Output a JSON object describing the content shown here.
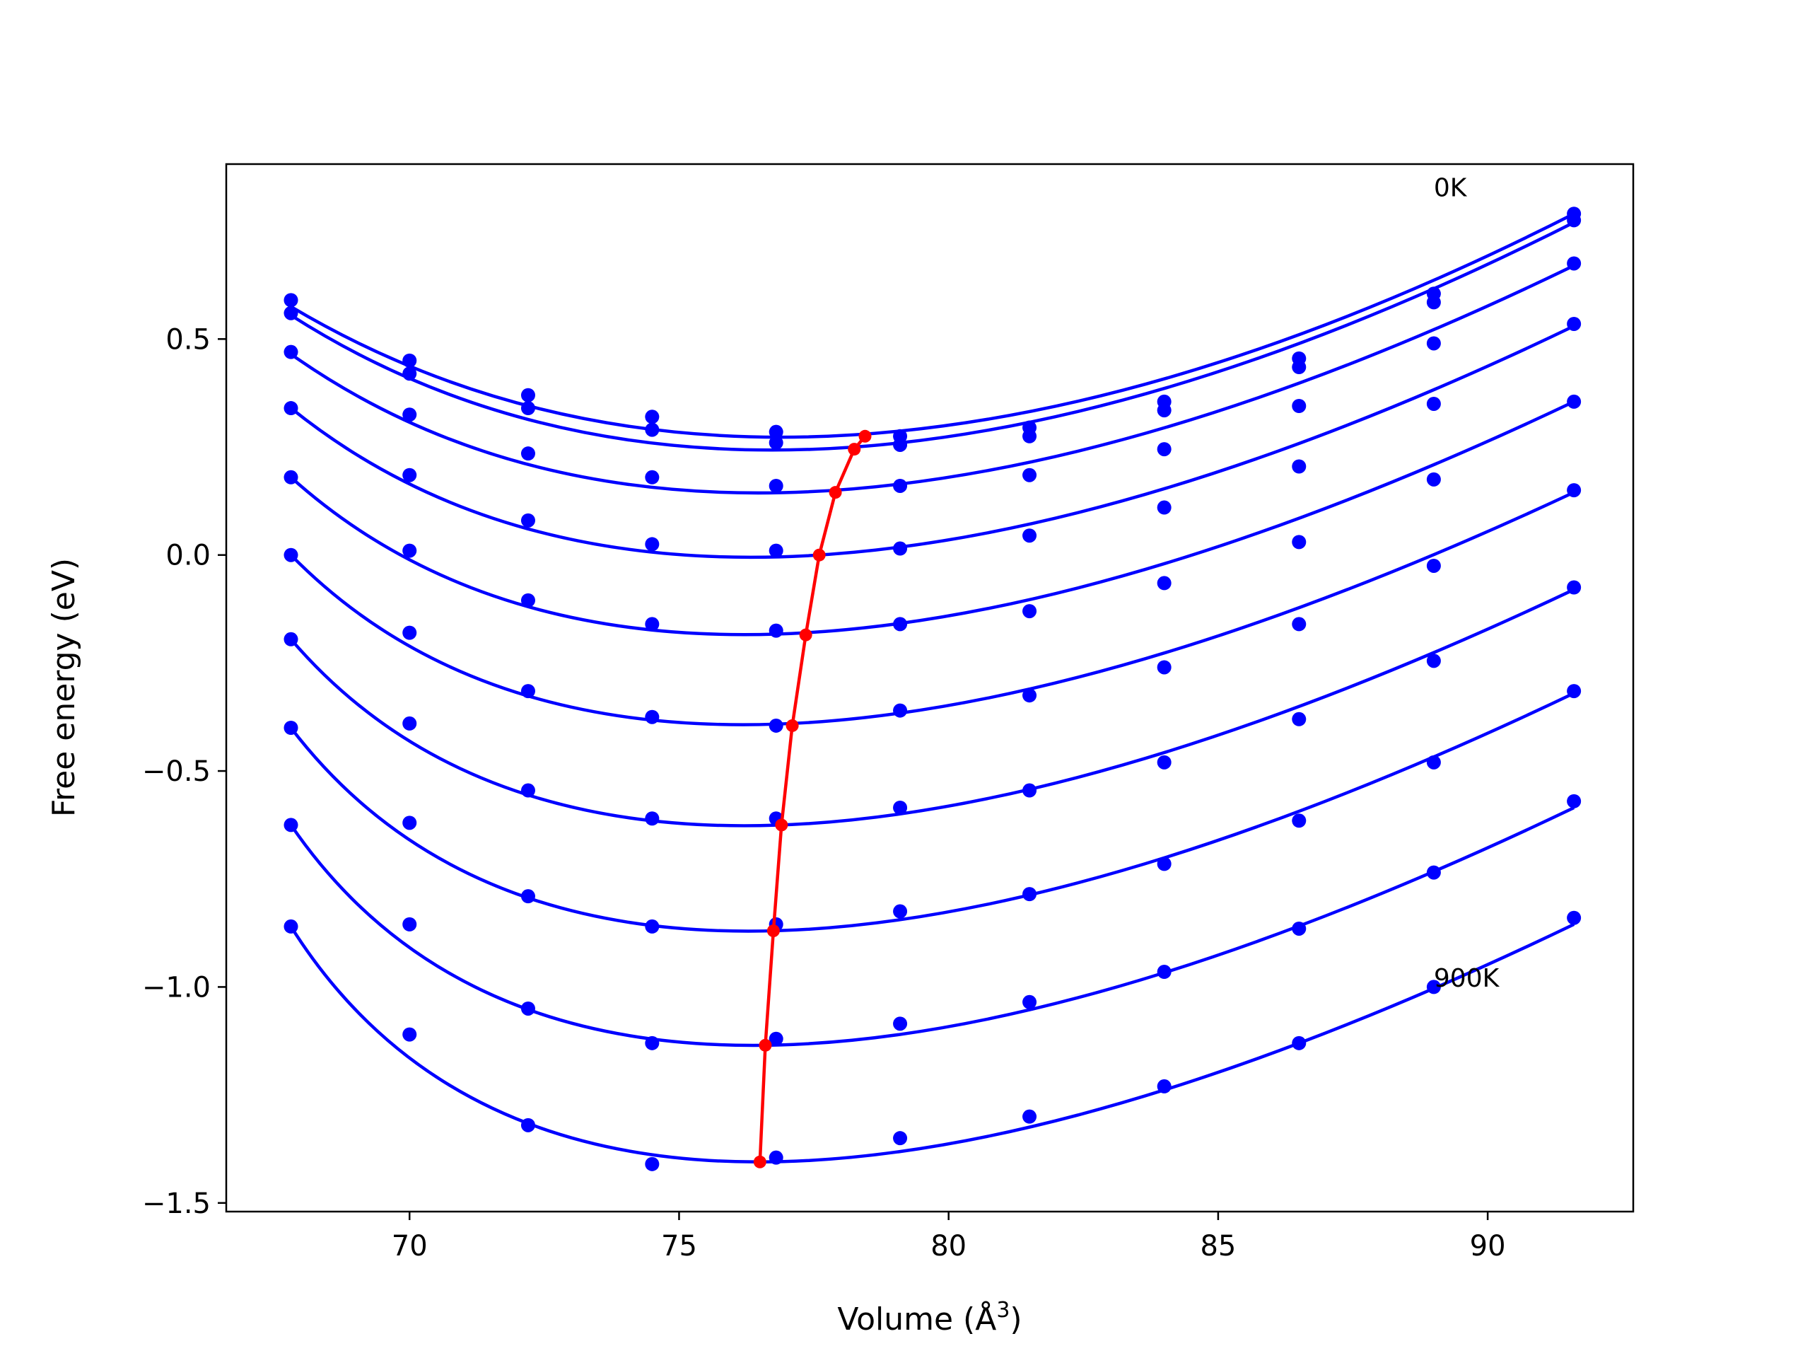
{
  "chart_data": {
    "type": "line",
    "xlabel": "Volume (Å",
    "xlabel_sup": "3",
    "xlabel_close": ")",
    "ylabel": "Free energy (eV)",
    "xlim": [
      66.6,
      92.7
    ],
    "ylim": [
      -1.52,
      0.905
    ],
    "xticks": [
      70,
      75,
      80,
      85,
      90
    ],
    "xtick_labels": [
      "70",
      "75",
      "80",
      "85",
      "90"
    ],
    "yticks": [
      0.5,
      0.0,
      -0.5,
      -1.0,
      -1.5
    ],
    "ytick_labels": [
      "0.5",
      "0.0",
      "−0.5",
      "−1.0",
      "−1.5"
    ],
    "grid": false,
    "colors": {
      "curves": "#0000ff",
      "minima": "#ff0000",
      "axes": "#000000"
    },
    "annotations": [
      {
        "text": "0K",
        "x": 89.0,
        "y": 0.85
      },
      {
        "text": "900K",
        "x": 89.0,
        "y": -0.98
      }
    ],
    "volumes": [
      67.8,
      70.0,
      72.2,
      74.5,
      76.8,
      79.1,
      81.5,
      84.0,
      86.5,
      89.0,
      91.6
    ],
    "series": [
      {
        "points": [
          0.59,
          0.45,
          0.37,
          0.32,
          0.285,
          0.275,
          0.295,
          0.355,
          0.455,
          0.605,
          0.79
        ],
        "fit": [
          0.575,
          0.28,
          0.79
        ]
      },
      {
        "points": [
          0.56,
          0.42,
          0.34,
          0.29,
          0.26,
          0.255,
          0.275,
          0.335,
          0.435,
          0.585,
          0.775
        ],
        "fit": [
          0.555,
          0.25,
          0.77
        ]
      },
      {
        "points": [
          0.47,
          0.325,
          0.235,
          0.18,
          0.16,
          0.16,
          0.185,
          0.245,
          0.345,
          0.49,
          0.675
        ],
        "fit": [
          0.465,
          0.15,
          0.67
        ]
      },
      {
        "points": [
          0.34,
          0.185,
          0.08,
          0.025,
          0.01,
          0.015,
          0.045,
          0.11,
          0.205,
          0.35,
          0.535
        ],
        "fit": [
          0.34,
          0.0,
          0.53
        ]
      },
      {
        "points": [
          0.18,
          0.01,
          -0.105,
          -0.16,
          -0.175,
          -0.16,
          -0.13,
          -0.065,
          0.03,
          0.175,
          0.355
        ],
        "fit": [
          0.18,
          -0.18,
          0.355
        ]
      },
      {
        "points": [
          0.0,
          -0.18,
          -0.315,
          -0.375,
          -0.395,
          -0.36,
          -0.325,
          -0.26,
          -0.16,
          -0.025,
          0.15
        ],
        "fit": [
          0.0,
          -0.39,
          0.145
        ]
      },
      {
        "points": [
          -0.195,
          -0.39,
          -0.545,
          -0.61,
          -0.61,
          -0.585,
          -0.545,
          -0.48,
          -0.38,
          -0.245,
          -0.075
        ],
        "fit": [
          -0.195,
          -0.625,
          -0.08
        ]
      },
      {
        "points": [
          -0.4,
          -0.62,
          -0.79,
          -0.86,
          -0.855,
          -0.825,
          -0.785,
          -0.715,
          -0.615,
          -0.48,
          -0.315
        ],
        "fit": [
          -0.4,
          -0.87,
          -0.32
        ]
      },
      {
        "points": [
          -0.625,
          -0.855,
          -1.05,
          -1.13,
          -1.12,
          -1.085,
          -1.035,
          -0.965,
          -0.865,
          -0.735,
          -0.57
        ],
        "fit": [
          -0.625,
          -1.135,
          -0.585
        ]
      },
      {
        "points": [
          -0.86,
          -1.11,
          -1.32,
          -1.41,
          -1.395,
          -1.35,
          -1.3,
          -1.23,
          -1.13,
          -1.0,
          -0.84
        ],
        "fit": [
          -0.86,
          -1.405,
          -0.855
        ]
      }
    ],
    "minima": {
      "x": [
        78.45,
        78.25,
        77.9,
        77.6,
        77.35,
        77.1,
        76.9,
        76.75,
        76.6,
        76.5
      ],
      "y": [
        0.275,
        0.245,
        0.145,
        0.0,
        -0.185,
        -0.395,
        -0.625,
        -0.87,
        -1.135,
        -1.405
      ]
    }
  }
}
